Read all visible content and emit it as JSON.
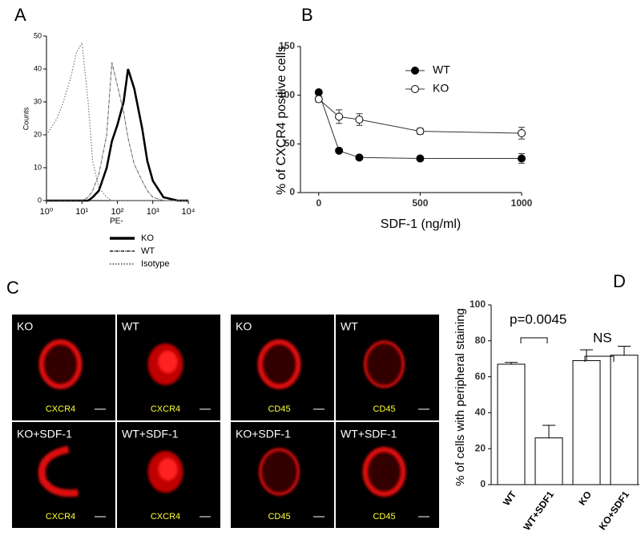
{
  "panel_labels": [
    "A",
    "B",
    "C",
    "D"
  ],
  "chart_data": [
    {
      "type": "histogram-line",
      "xlabel": "PE-",
      "ylabel": "Counts",
      "xscale": "log",
      "x": [
        1,
        2,
        3,
        5,
        7,
        10,
        15,
        20,
        30,
        50,
        70,
        100,
        150,
        200,
        300,
        500,
        700,
        1000,
        2000,
        5000,
        10000
      ],
      "xlim": [
        1,
        10000
      ],
      "xticks": [
        {
          "value": 1,
          "label": "10⁰"
        },
        {
          "value": 10,
          "label": "10¹"
        },
        {
          "value": 100,
          "label": "10²"
        },
        {
          "value": 1000,
          "label": "10³"
        },
        {
          "value": 10000,
          "label": "10⁴"
        }
      ],
      "ylim": [
        0,
        50
      ],
      "yticks": [
        0,
        10,
        20,
        30,
        40,
        50
      ],
      "series": [
        {
          "name": "KO",
          "color": "#000000",
          "values": [
            0,
            0,
            0,
            0,
            0,
            0,
            0,
            1,
            3,
            10,
            18,
            23,
            30,
            40,
            34,
            22,
            12,
            6,
            1,
            0,
            0
          ]
        },
        {
          "name": "WT",
          "color": "#555555",
          "values": [
            0,
            0,
            0,
            0,
            0,
            0,
            1,
            3,
            8,
            20,
            42,
            35,
            27,
            19,
            11,
            6,
            3,
            1,
            0,
            0,
            0
          ]
        },
        {
          "name": "Isotype",
          "color": "#777777",
          "values": [
            20,
            25,
            30,
            38,
            45,
            48,
            30,
            12,
            4,
            1,
            0,
            0,
            0,
            0,
            0,
            0,
            0,
            0,
            0,
            0,
            0
          ]
        }
      ]
    },
    {
      "type": "line",
      "xlabel": "SDF-1 (ng/ml)",
      "ylabel": "% of CXCR4 positive cells",
      "x": [
        0,
        100,
        200,
        500,
        1000
      ],
      "xlim": [
        -90,
        1000
      ],
      "xticks": [
        0,
        500,
        1000
      ],
      "ylim": [
        0,
        150
      ],
      "yticks": [
        0,
        50,
        100,
        150
      ],
      "series": [
        {
          "name": "WT",
          "color": "#000000",
          "values": [
            103,
            43,
            36,
            35,
            35
          ],
          "errors": [
            0,
            2,
            2,
            2,
            5
          ]
        },
        {
          "name": "KO",
          "color": "#ffffff",
          "values": [
            96,
            78,
            75,
            63,
            61
          ],
          "errors": [
            3,
            7,
            6,
            3,
            6
          ]
        }
      ]
    },
    {
      "type": "bar",
      "ylabel": "% of cells with peripheral staining",
      "categories": [
        "WT",
        "WT+SDF1",
        "KO",
        "KO+SDF1"
      ],
      "values": [
        67,
        26,
        69,
        72
      ],
      "errors": [
        1,
        7,
        6,
        5
      ],
      "color": "#ffffff",
      "ylim": [
        0,
        100
      ],
      "yticks": [
        0,
        20,
        40,
        60,
        80,
        100
      ],
      "annotations": [
        "p=0.0045",
        "NS"
      ]
    }
  ],
  "panel_c": [
    {
      "label": "KO",
      "stain": "CXCR4"
    },
    {
      "label": "WT",
      "stain": "CXCR4"
    },
    {
      "label": "KO",
      "stain": "CD45"
    },
    {
      "label": "WT",
      "stain": "CD45"
    },
    {
      "label": "KO+SDF-1",
      "stain": "CXCR4"
    },
    {
      "label": "WT+SDF-1",
      "stain": "CXCR4"
    },
    {
      "label": "KO+SDF-1",
      "stain": "CD45"
    },
    {
      "label": "WT+SDF-1",
      "stain": "CD45"
    }
  ]
}
